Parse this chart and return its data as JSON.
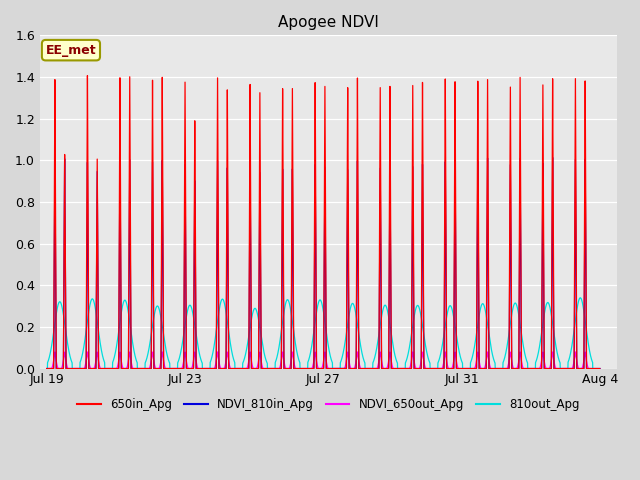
{
  "title": "Apogee NDVI",
  "annotation_text": "EE_met",
  "annotation_bg": "#ffffcc",
  "annotation_border": "#999900",
  "annotation_text_color": "#8B0000",
  "bg_color": "#d8d8d8",
  "plot_bg": "#e8e8e8",
  "ylim": [
    0.0,
    1.6
  ],
  "yticks": [
    0.0,
    0.2,
    0.4,
    0.6,
    0.8,
    1.0,
    1.2,
    1.4,
    1.6
  ],
  "legend_labels": [
    "650in_Apg",
    "NDVI_810in_Apg",
    "NDVI_650out_Apg",
    "810out_Apg"
  ],
  "legend_colors": [
    "#ff0000",
    "#0000dd",
    "#ff00ff",
    "#00dddd"
  ],
  "xtick_labels": [
    "Jul 19",
    "Jul 23",
    "Jul 27",
    "Jul 31",
    "Aug 4"
  ],
  "xtick_positions": [
    0,
    4,
    8,
    12,
    16
  ],
  "num_cycles": 17,
  "red_peaks": [
    1.39,
    1.05,
    1.42,
    1.02,
    1.42,
    1.41,
    1.41,
    1.4,
    1.39,
    1.2,
    1.4,
    1.36,
    1.37,
    1.35,
    1.36,
    1.36,
    1.4,
    1.36,
    1.37,
    1.4,
    1.36,
    1.37,
    1.36,
    1.4,
    1.4,
    1.4,
    1.4,
    1.4,
    1.38,
    1.4,
    1.38,
    1.4,
    1.4,
    1.4
  ],
  "blue_peaks": [
    1.0,
    1.03,
    1.0,
    0.96,
    1.02,
    1.01,
    1.01,
    1.0,
    0.99,
    0.91,
    1.0,
    0.98,
    0.97,
    0.96,
    0.97,
    0.97,
    1.0,
    0.97,
    0.97,
    1.0,
    0.97,
    0.97,
    0.97,
    1.0,
    1.0,
    1.01,
    1.01,
    1.02,
    1.0,
    1.01,
    1.0,
    1.02,
    1.01,
    1.02
  ],
  "cyan_peak": 0.34,
  "magenta_peak": 0.08
}
